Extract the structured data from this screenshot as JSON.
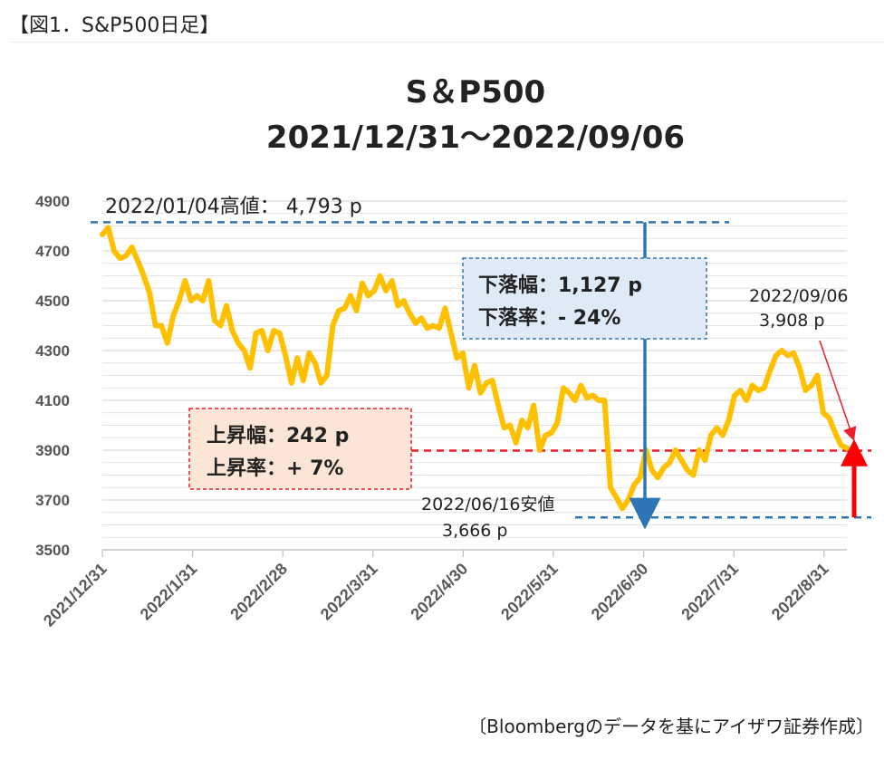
{
  "figure_label": "【図1．S&P500日足】",
  "source_note": "〔Bloombergのデータを基にアイザワ証券作成〕",
  "colors": {
    "line": "#FFC000",
    "blue_dash": "#2E75B6",
    "red_dash": "#E81E2A",
    "arrow_red": "#FF0000",
    "fall_box_bg": "#DEEBF7",
    "rise_box_bg": "#FBE5D6",
    "grid": "#D9D9D9"
  },
  "chart_data": {
    "type": "line",
    "title": [
      "S＆P500",
      "2021/12/31～2022/09/06"
    ],
    "ylim": [
      3500,
      4900
    ],
    "yticks": [
      "3500",
      "3700",
      "3900",
      "4100",
      "4300",
      "4500",
      "4700",
      "4900"
    ],
    "xticks": [
      "2021/12/31",
      "2022/1/31",
      "2022/2/28",
      "2022/3/31",
      "2022/4/30",
      "2022/5/31",
      "2022/6/30",
      "2022/7/31",
      "2022/8/31"
    ],
    "grid": true,
    "series": [
      {
        "values": [
          4766,
          4793,
          4700,
          4670,
          4680,
          4715,
          4660,
          4600,
          4530,
          4400,
          4400,
          4330,
          4440,
          4500,
          4580,
          4500,
          4520,
          4500,
          4580,
          4420,
          4400,
          4480,
          4380,
          4330,
          4300,
          4230,
          4370,
          4380,
          4300,
          4380,
          4370,
          4280,
          4170,
          4270,
          4180,
          4290,
          4250,
          4170,
          4200,
          4400,
          4460,
          4470,
          4520,
          4460,
          4570,
          4520,
          4540,
          4600,
          4540,
          4580,
          4480,
          4500,
          4450,
          4410,
          4430,
          4390,
          4400,
          4390,
          4470,
          4370,
          4270,
          4290,
          4150,
          4240,
          4130,
          4170,
          4180,
          4080,
          3990,
          4000,
          3930,
          4020,
          3990,
          4080,
          3900,
          3960,
          3970,
          4010,
          4150,
          4130,
          4100,
          4160,
          4110,
          4120,
          4100,
          4100,
          3750,
          3710,
          3666,
          3700,
          3760,
          3790,
          3900,
          3820,
          3790,
          3830,
          3850,
          3900,
          3860,
          3820,
          3800,
          3900,
          3860,
          3960,
          3990,
          3960,
          4020,
          4120,
          4140,
          4100,
          4160,
          4140,
          4150,
          4220,
          4280,
          4300,
          4280,
          4290,
          4230,
          4140,
          4160,
          4200,
          4050,
          4030,
          3970,
          3920,
          3908
        ]
      }
    ],
    "annotations": {
      "high": "2022/01/04高値： 4,793 p",
      "low_date": "2022/06/16安値",
      "low_value": "3,666 p",
      "last_date": "2022/09/06",
      "last_value": "3,908 p",
      "fall_range": "下落幅：1,127 p",
      "fall_rate": "下落率：- 24%",
      "rise_range": "上昇幅：242 p",
      "rise_rate": "上昇率：+ 7%"
    }
  }
}
